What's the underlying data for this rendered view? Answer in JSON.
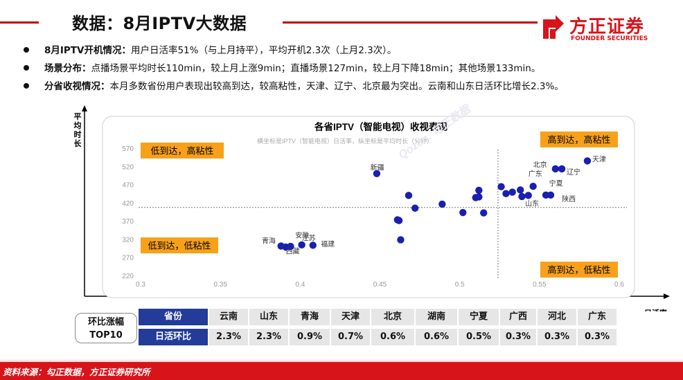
{
  "page_title": "数据：8月IPTV大数据",
  "logo": {
    "cn": "方正证券",
    "en": "FOUNDER SECURITIES"
  },
  "bullets": [
    {
      "label": "8月IPTV开机情况：",
      "text": "用户日活率51%（与上月持平），平均开机2.3次（上月2.3次）。"
    },
    {
      "label": "场景分布：",
      "text": "点播场景平均时长110min，较上月上涨9min；直播场景127min，较上月下降18min；其他场景133min。"
    },
    {
      "label": "分省收视情况：",
      "text": "本月多数省份用户表现出较高到达，较高粘性，天津、辽宁、北京最为突出。云南和山东日活环比增长2.3%。"
    }
  ],
  "chart_data": {
    "type": "scatter",
    "title": "各省IPTV（智能电视）收视表现",
    "subtitle": "横坐标是IPTV（智能电视）日活率，纵坐标是平均时长（分钟）",
    "xlabel": "日活率",
    "ylabel": "平均时长",
    "xlim": [
      0.3,
      0.6
    ],
    "ylim": [
      220,
      570
    ],
    "xticks": [
      "0.3",
      "0.35",
      "0.4",
      "0.45",
      "0.5",
      "0.55",
      "0.6"
    ],
    "yticks": [
      "220",
      "270",
      "320",
      "370",
      "420",
      "470",
      "520",
      "570"
    ],
    "ref_x": 0.524,
    "ref_y": 407,
    "quadrants": [
      "低到达，高粘性",
      "高到达，高粘性",
      "低到达，低粘性",
      "高到达，低粘性"
    ],
    "point_color": "#1a1fb0",
    "points": [
      {
        "x": 0.388,
        "y": 301
      },
      {
        "x": 0.391,
        "y": 298
      },
      {
        "x": 0.394,
        "y": 300
      },
      {
        "x": 0.401,
        "y": 304
      },
      {
        "x": 0.408,
        "y": 303
      },
      {
        "x": 0.448,
        "y": 500
      },
      {
        "x": 0.461,
        "y": 373
      },
      {
        "x": 0.462,
        "y": 371
      },
      {
        "x": 0.463,
        "y": 318
      },
      {
        "x": 0.468,
        "y": 440
      },
      {
        "x": 0.472,
        "y": 405
      },
      {
        "x": 0.489,
        "y": 416
      },
      {
        "x": 0.502,
        "y": 393
      },
      {
        "x": 0.51,
        "y": 434
      },
      {
        "x": 0.512,
        "y": 454
      },
      {
        "x": 0.512,
        "y": 436
      },
      {
        "x": 0.515,
        "y": 392
      },
      {
        "x": 0.526,
        "y": 464
      },
      {
        "x": 0.529,
        "y": 445
      },
      {
        "x": 0.533,
        "y": 449
      },
      {
        "x": 0.538,
        "y": 455
      },
      {
        "x": 0.539,
        "y": 437
      },
      {
        "x": 0.543,
        "y": 440
      },
      {
        "x": 0.546,
        "y": 465
      },
      {
        "x": 0.554,
        "y": 441
      },
      {
        "x": 0.557,
        "y": 441
      },
      {
        "x": 0.56,
        "y": 513
      },
      {
        "x": 0.564,
        "y": 513
      },
      {
        "x": 0.58,
        "y": 535
      }
    ],
    "labels": [
      {
        "text": "新疆",
        "x": 0.444,
        "y": 510
      },
      {
        "text": "安徽",
        "x": 0.397,
        "y": 324
      },
      {
        "text": "江苏",
        "x": 0.401,
        "y": 316
      },
      {
        "text": "青海",
        "x": 0.376,
        "y": 308
      },
      {
        "text": "福建",
        "x": 0.413,
        "y": 300
      },
      {
        "text": "西藏",
        "x": 0.391,
        "y": 280
      },
      {
        "text": "北京",
        "x": 0.546,
        "y": 518
      },
      {
        "text": "辽宁",
        "x": 0.567,
        "y": 498
      },
      {
        "text": "天津",
        "x": 0.583,
        "y": 533
      },
      {
        "text": "广东",
        "x": 0.543,
        "y": 493
      },
      {
        "text": "宁夏",
        "x": 0.556,
        "y": 466
      },
      {
        "text": "陕西",
        "x": 0.564,
        "y": 424
      },
      {
        "text": "山东",
        "x": 0.541,
        "y": 411
      }
    ],
    "watermark": "Qozen. 勾正数据"
  },
  "table": {
    "pill_line1": "环比涨幅",
    "pill_line2": "TOP10",
    "row1_header": "省份",
    "row2_header": "日活环比",
    "provinces": [
      "云南",
      "山东",
      "青海",
      "天津",
      "北京",
      "湖南",
      "宁夏",
      "广西",
      "河北",
      "广东"
    ],
    "values": [
      "2.3%",
      "2.3%",
      "0.9%",
      "0.7%",
      "0.6%",
      "0.6%",
      "0.5%",
      "0.3%",
      "0.3%",
      "0.3%"
    ]
  },
  "footer": "资料来源：勾正数据，方正证券研究所"
}
